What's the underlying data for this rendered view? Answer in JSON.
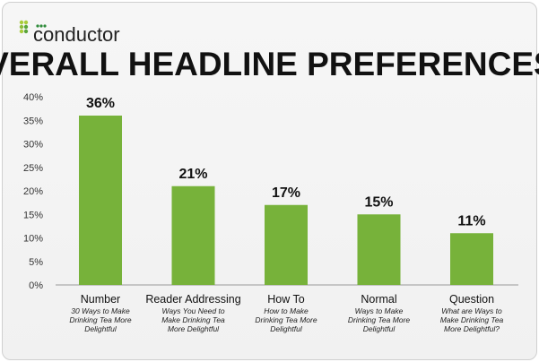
{
  "logo": {
    "text": "conductor"
  },
  "chart_data": {
    "type": "bar",
    "title": "OVERALL HEADLINE PREFERENCES",
    "categories": [
      "Number",
      "Reader Addressing",
      "How To",
      "Normal",
      "Question"
    ],
    "subtitles": [
      [
        "30 Ways to Make",
        "Drinking Tea More",
        "Delightful"
      ],
      [
        "Ways You Need to",
        "Make Drinking Tea",
        "More Delightful"
      ],
      [
        "How to Make",
        "Drinking Tea More",
        "Delightful"
      ],
      [
        "Ways to Make",
        "Drinking Tea More",
        "Delightful"
      ],
      [
        "What are Ways to",
        "Make Drinking Tea",
        "More Delightful?"
      ]
    ],
    "values": [
      36,
      21,
      17,
      15,
      11
    ],
    "data_labels": [
      "36%",
      "21%",
      "17%",
      "15%",
      "11%"
    ],
    "ylim": [
      0,
      40
    ],
    "yticks": [
      "0%",
      "5%",
      "10%",
      "15%",
      "20%",
      "25%",
      "30%",
      "35%",
      "40%"
    ],
    "grid": false,
    "legend": "none",
    "bar_color": "#77b23a"
  }
}
